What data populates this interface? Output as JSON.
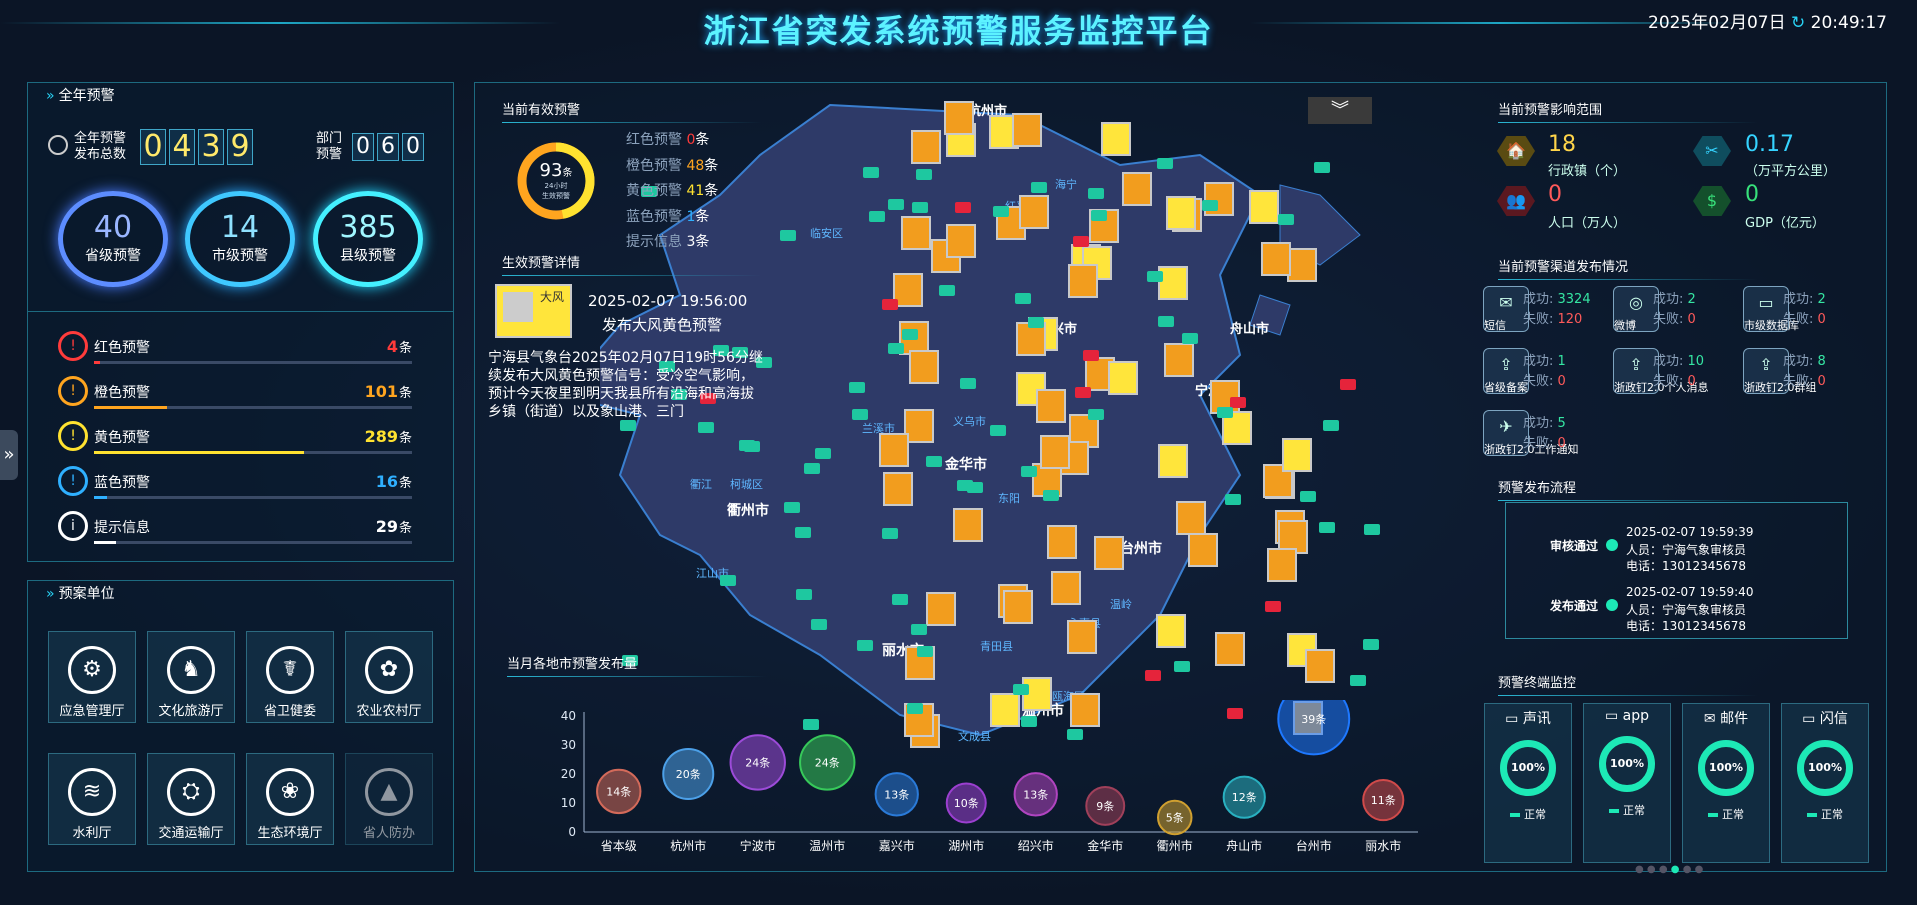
{
  "header": {
    "title": "浙江省突发系统预警服务监控平台",
    "date": "2025年02月07日",
    "time": "20:49:17"
  },
  "annual": {
    "title": "全年预警",
    "total_label1": "全年预警",
    "total_label2": "发布总数",
    "total_digits": [
      "0",
      "4",
      "3",
      "9"
    ],
    "dept_label1": "部门",
    "dept_label2": "预警",
    "dept_digits": [
      "0",
      "6",
      "0"
    ],
    "rings": [
      {
        "value": "40",
        "label": "省级预警"
      },
      {
        "value": "14",
        "label": "市级预警"
      },
      {
        "value": "385",
        "label": "县级预警"
      }
    ],
    "levels": [
      {
        "icon": "!",
        "name": "红色预警",
        "count": "4",
        "unit": "条",
        "fill": 0.02,
        "color": "#ff3b3b"
      },
      {
        "icon": "!",
        "name": "橙色预警",
        "count": "101",
        "unit": "条",
        "fill": 0.23,
        "color": "#ffa51f"
      },
      {
        "icon": "!",
        "name": "黄色预警",
        "count": "289",
        "unit": "条",
        "fill": 0.66,
        "color": "#ffe230"
      },
      {
        "icon": "!",
        "name": "蓝色预警",
        "count": "16",
        "unit": "条",
        "fill": 0.04,
        "color": "#2fb0ff"
      },
      {
        "icon": "i",
        "name": "提示信息",
        "count": "29",
        "unit": "条",
        "fill": 0.07,
        "color": "#ffffff"
      }
    ]
  },
  "units": {
    "title": "预案单位",
    "items": [
      {
        "name": "应急管理厅",
        "icon": "⚙"
      },
      {
        "name": "文化旅游厅",
        "icon": "♞"
      },
      {
        "name": "省卫健委",
        "icon": "☤"
      },
      {
        "name": "农业农村厅",
        "icon": "✿"
      },
      {
        "name": "水利厅",
        "icon": "≋"
      },
      {
        "name": "交通运输厅",
        "icon": "⛭"
      },
      {
        "name": "生态环境厅",
        "icon": "❀"
      },
      {
        "name": "省人防办",
        "icon": "▲"
      }
    ]
  },
  "effective": {
    "title": "当前有效预警",
    "donut_value": "93",
    "donut_unit": "条",
    "donut_caption1": "24小时",
    "donut_caption2": "生效预警",
    "lines": [
      {
        "label": "红色预警",
        "value": "0",
        "unit": "条",
        "color": "#ff3b3b"
      },
      {
        "label": "橙色预警",
        "value": "48",
        "unit": "条",
        "color": "#ffa51f"
      },
      {
        "label": "黄色预警",
        "value": "41",
        "unit": "条",
        "color": "#ffe230"
      },
      {
        "label": "蓝色预警",
        "value": "1",
        "unit": "条",
        "color": "#2fb0ff"
      },
      {
        "label": "提示信息",
        "value": "3",
        "unit": "条",
        "color": "#ffffff"
      }
    ]
  },
  "detail": {
    "title": "生效预警详情",
    "time": "2025-02-07 19:56:00",
    "headline": "发布大风黄色预警",
    "icon_text": "大风",
    "text": "宁海县气象台2025年02月07日19时56分继续发布大风黄色预警信号：受冷空气影响，预计今天夜里到明天我县所有沿海和高海拔乡镇（街道）以及象山港、三门"
  },
  "map": {
    "labels": [
      "杭州市",
      "嘉兴市",
      "临安区",
      "红平区",
      "海宁",
      "兰溪市",
      "义乌市",
      "金华市",
      "东阳",
      "衢江",
      "柯城区",
      "衢州市",
      "江山市",
      "台州市",
      "温岭",
      "青田县",
      "永嘉县",
      "温州市",
      "文成县",
      "瓯海区",
      "丽水市",
      "舟山市",
      "宁波市"
    ],
    "toggle_icon": "double-chevron-down-icon"
  },
  "monthly": {
    "title": "当月各地市预警发布量"
  },
  "chart_data": {
    "type": "scatter",
    "title": "当月各地市预警发布量",
    "categories": [
      "省本级",
      "杭州市",
      "宁波市",
      "温州市",
      "嘉兴市",
      "湖州市",
      "绍兴市",
      "金华市",
      "衢州市",
      "舟山市",
      "台州市",
      "丽水市"
    ],
    "values": [
      14,
      20,
      24,
      24,
      13,
      10,
      13,
      9,
      5,
      12,
      39,
      11
    ],
    "value_labels": [
      "14条",
      "20条",
      "24条",
      "24条",
      "13条",
      "10条",
      "13条",
      "9条",
      "5条",
      "12条",
      "39条",
      "11条"
    ],
    "ylim": [
      0,
      40
    ],
    "yticks": [
      0,
      10,
      20,
      30,
      40
    ]
  },
  "impact": {
    "title": "当前预警影响范围",
    "items": [
      {
        "icon": "🏠",
        "value": "18",
        "label": "行政镇（个）",
        "color": "#ffd54a",
        "icon_bg": "#ffd54a"
      },
      {
        "icon": "✂",
        "value": "0.17",
        "label": "（万平方公里）",
        "color": "#35d3ff",
        "icon_bg": "#35d3ff"
      },
      {
        "icon": "👥",
        "value": "0",
        "label": "人口（万人）",
        "color": "#ff5a5a",
        "icon_bg": "#ff5a5a"
      },
      {
        "icon": "$",
        "value": "0",
        "label": "GDP（亿元）",
        "color": "#37e07a",
        "icon_bg": "#37e07a"
      }
    ]
  },
  "channels": {
    "title": "当前预警渠道发布情况",
    "success_label": "成功:",
    "fail_label": "失败:",
    "items": [
      {
        "name": "短信",
        "glyph": "✉",
        "success": "3324",
        "fail": "120"
      },
      {
        "name": "微博",
        "glyph": "◎",
        "success": "2",
        "fail": "0"
      },
      {
        "name": "市级数据库",
        "glyph": "▭",
        "success": "2",
        "fail": "0"
      },
      {
        "name": "省级备案",
        "glyph": "⇪",
        "success": "1",
        "fail": "0"
      },
      {
        "name": "浙政钉2.0个人消息",
        "glyph": "⇪",
        "success": "10",
        "fail": "0"
      },
      {
        "name": "浙政钉2.0群组",
        "glyph": "⇪",
        "success": "8",
        "fail": "0"
      },
      {
        "name": "浙政钉2.0工作通知",
        "glyph": "✈",
        "success": "5",
        "fail": "0"
      }
    ]
  },
  "flow": {
    "title": "预警发布流程",
    "steps": [
      {
        "status": "审核通过",
        "time": "2025-02-07 19:59:39",
        "person": "人员：宁海气象审核员",
        "phone": "电话：13012345678"
      },
      {
        "status": "发布通过",
        "time": "2025-02-07 19:59:40",
        "person": "人员：宁海气象审核员",
        "phone": "电话：13012345678"
      }
    ]
  },
  "terminal": {
    "title": "预警终端监控",
    "items": [
      {
        "name": "声讯",
        "value": "100%",
        "status": "正常"
      },
      {
        "name": "app",
        "value": "100%",
        "status": "正常"
      },
      {
        "name": "邮件",
        "value": "100%",
        "status": "正常"
      },
      {
        "name": "闪信",
        "value": "100%",
        "status": "正常"
      }
    ]
  }
}
